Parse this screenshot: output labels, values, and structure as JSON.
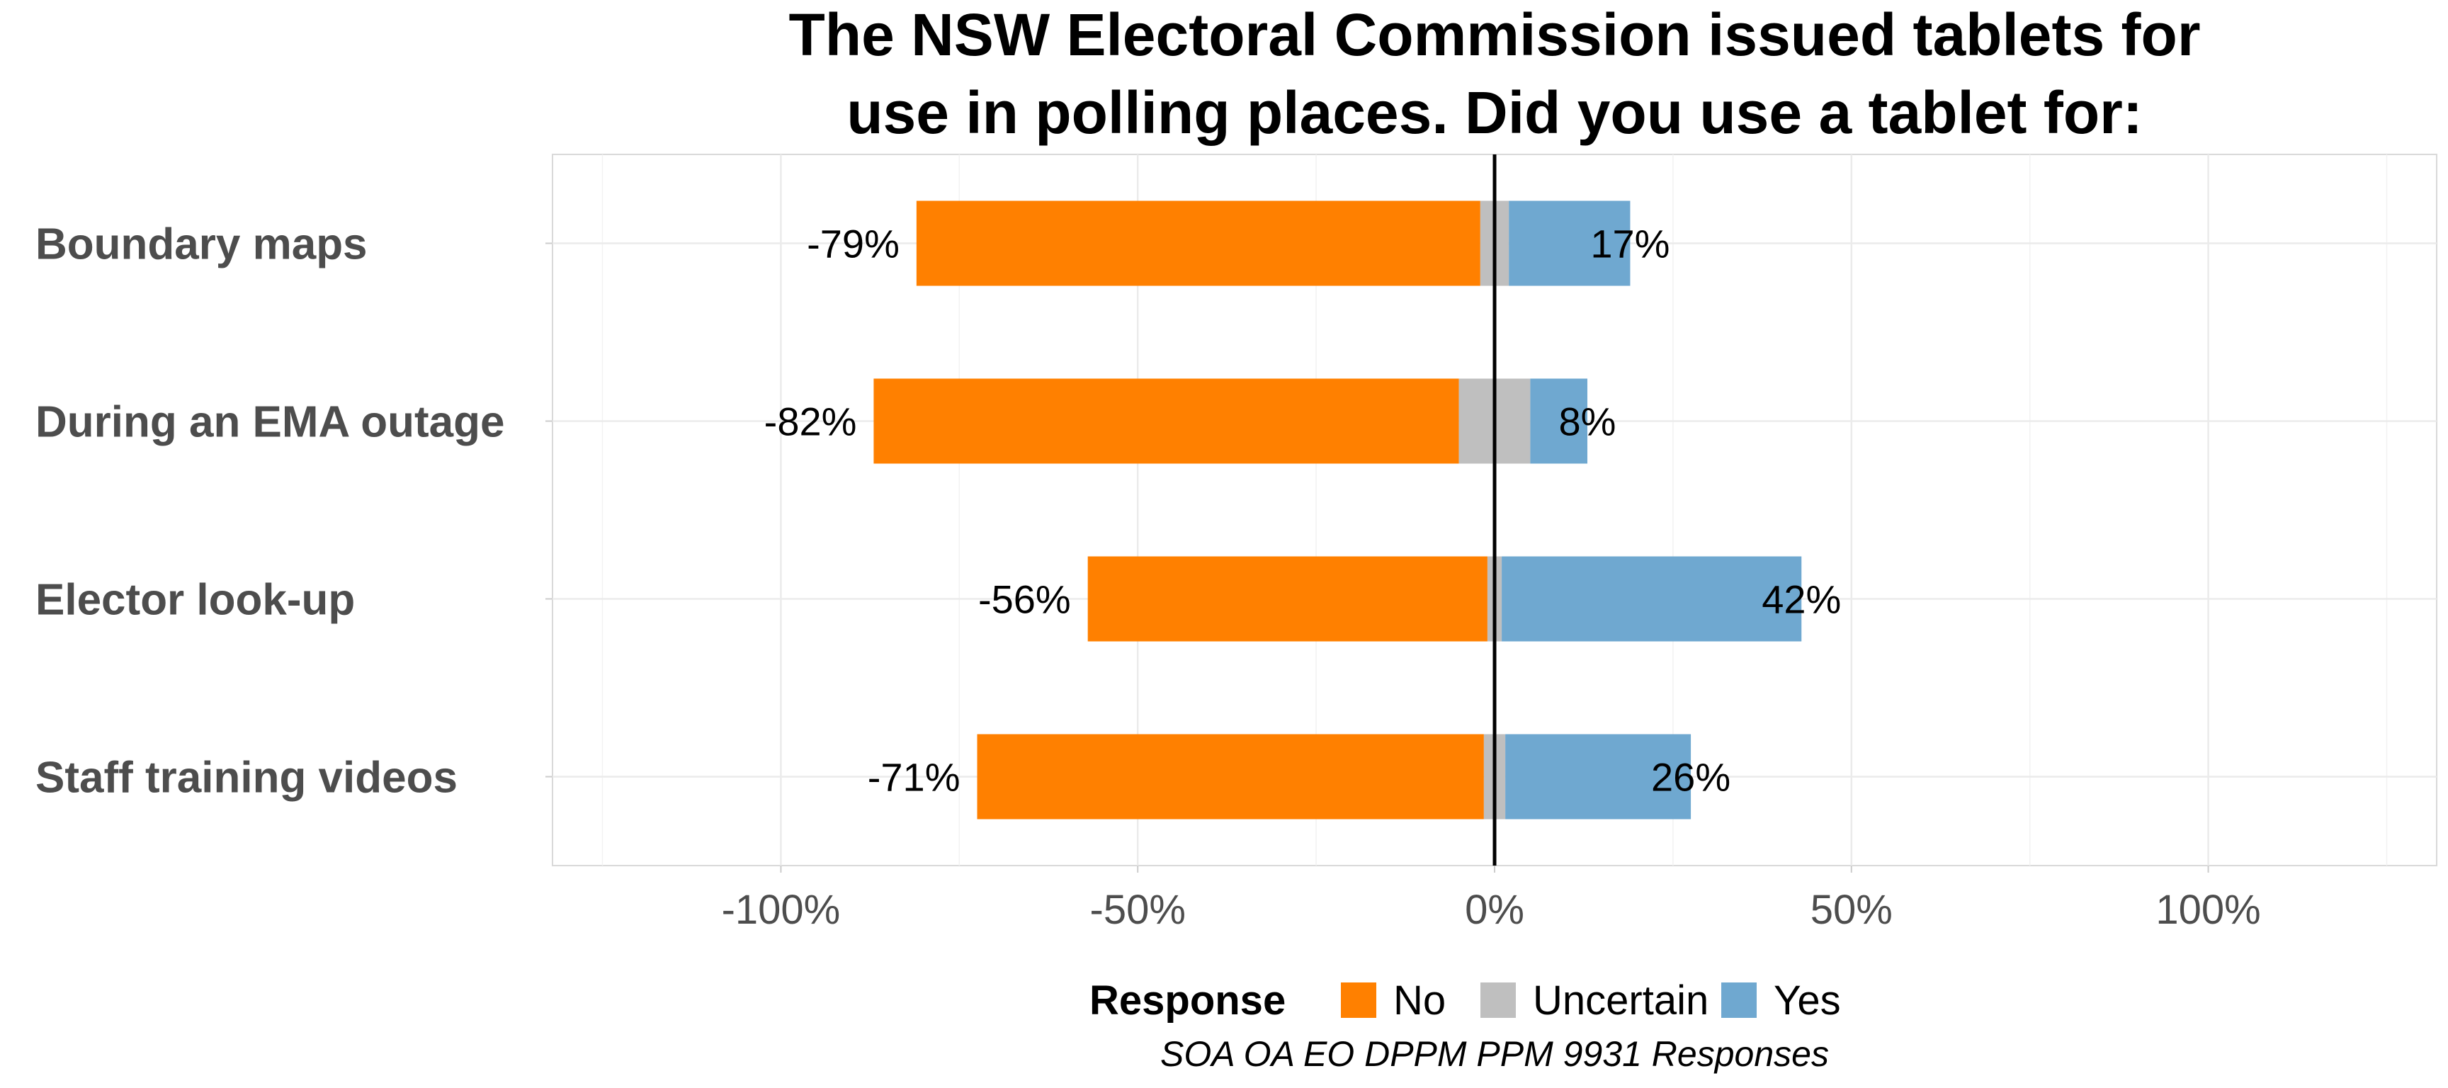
{
  "chart_data": {
    "type": "bar",
    "orientation": "horizontal",
    "stacking": "diverging",
    "title_lines": [
      "The NSW Electoral Commission issued tablets for",
      "use in polling places. Did you use a tablet for:"
    ],
    "caption": "SOA OA EO DPPM PPM 9931 Responses",
    "categories": [
      "Boundary maps",
      "During an EMA outage",
      "Elector look-up",
      "Staff training videos"
    ],
    "series": [
      {
        "name": "No",
        "color": "#FF8000",
        "values": [
          79,
          82,
          56,
          71
        ]
      },
      {
        "name": "Uncertain",
        "color": "#BFBFBF",
        "values": [
          4,
          10,
          2,
          3
        ]
      },
      {
        "name": "Yes",
        "color": "#6FA8D0",
        "values": [
          17,
          8,
          42,
          26
        ]
      }
    ],
    "data_labels": {
      "no": [
        "-79%",
        "-82%",
        "-56%",
        "-71%"
      ],
      "yes": [
        "17%",
        "8%",
        "42%",
        "26%"
      ]
    },
    "xlim": [
      -132,
      132
    ],
    "x_ticks": [
      -100,
      -50,
      0,
      50,
      100
    ],
    "x_tick_labels": [
      "-100%",
      "-50%",
      "0%",
      "50%",
      "100%"
    ],
    "grid": true,
    "zero_line": true,
    "legend": {
      "position": "bottom",
      "title": "Response",
      "items": [
        "No",
        "Uncertain",
        "Yes"
      ]
    }
  }
}
